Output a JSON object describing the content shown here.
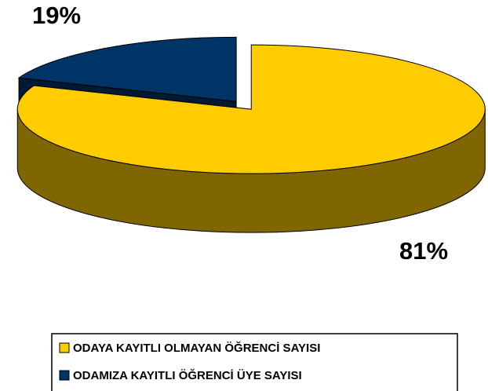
{
  "chart_data": {
    "type": "pie",
    "categories": [
      "ODAYA KAYITLI OLMAYAN ÖĞRENCİ SAYISI",
      "ODAMIZA KAYITLI ÖĞRENCİ ÜYE SAYISI"
    ],
    "values": [
      81,
      19
    ],
    "value_labels": [
      "81%",
      "19%"
    ],
    "colors": [
      "#ffcc00",
      "#003366"
    ],
    "legend": "bottom"
  }
}
